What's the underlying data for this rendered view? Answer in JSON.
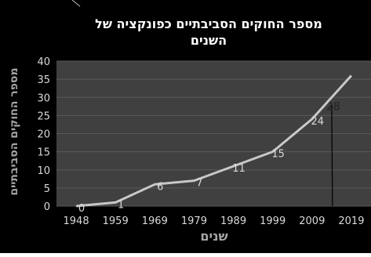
{
  "chart_data": {
    "type": "line",
    "title_line1": "מספר החוקים הסביבתיים כפונקציה של",
    "title_line2": "השנים",
    "xlabel": "שנים",
    "ylabel": "מספר החוקים הסביבתיים",
    "categories": [
      "1948",
      "1959",
      "1969",
      "1979",
      "1989",
      "1999",
      "2009",
      "2019"
    ],
    "ylim": [
      0,
      40
    ],
    "yticks": [
      0,
      5,
      10,
      15,
      20,
      25,
      30,
      35,
      40
    ],
    "series": [
      {
        "x": [
          0,
          1,
          2,
          3,
          4,
          5,
          6,
          7
        ],
        "values": [
          0,
          1,
          6,
          7,
          11,
          15,
          24,
          36
        ],
        "labels": [
          "0",
          "1",
          "6",
          "7",
          "11",
          "15",
          "24",
          ""
        ],
        "color": "#c8c8c8"
      }
    ],
    "annotation": {
      "label": "28",
      "x": 6.5,
      "value": 28
    },
    "grid": true,
    "legend": "none",
    "colors": {
      "background": "#000000",
      "plot": "#404040",
      "grid": "#5a5a5a",
      "text": "#d9d9d9",
      "title": "#ffffff"
    }
  }
}
